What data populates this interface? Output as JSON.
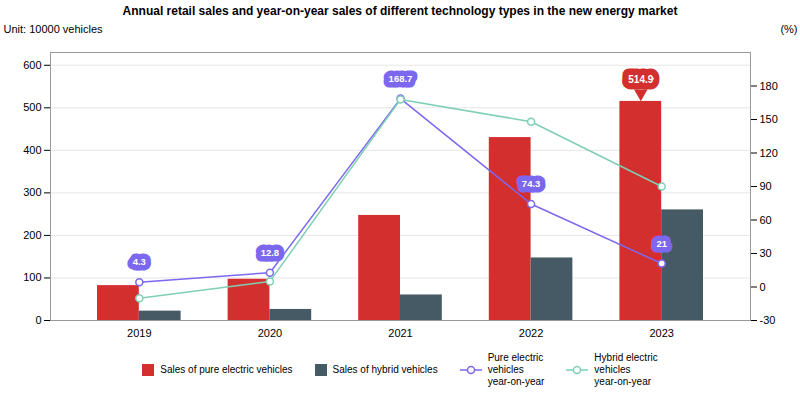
{
  "chart_data": {
    "type": "bar",
    "title": "Annual retail sales and year-on-year sales of different technology types in the new energy market",
    "ylabel": "Unit: 10000 vehicles",
    "y2label": "(%)",
    "categories": [
      "2019",
      "2020",
      "2021",
      "2022",
      "2023"
    ],
    "series": [
      {
        "name": "Sales of pure electric vehicles",
        "color": "#d32f2f",
        "values": [
          82,
          97,
          247,
          430,
          515
        ]
      },
      {
        "name": "Sales of hybrid vehicles",
        "color": "#455a64",
        "values": [
          22,
          26,
          60,
          147,
          260
        ]
      },
      {
        "name": "Pure electric\nvehicles\nyear-on-year",
        "type": "line",
        "axis": "y2",
        "color": "#7b68ee",
        "marker": "circle",
        "values": [
          4.3,
          12.8,
          168.7,
          74.3,
          21
        ],
        "data_labels": true,
        "value_labels": [
          "4.3",
          "12.8",
          "168.7",
          "74.3",
          "21"
        ]
      },
      {
        "name": "Hybrid electric\nvehicles\nyear-on-year",
        "type": "line",
        "axis": "y2",
        "color": "#7ecfb3",
        "marker": "circle",
        "values": [
          -10,
          5,
          168,
          148,
          90
        ]
      }
    ],
    "annotations": [
      {
        "text": "514.9",
        "x": "2023",
        "series": "Sales of pure electric vehicles"
      }
    ],
    "ylim": [
      0,
      630
    ],
    "yticks": [
      0,
      100,
      200,
      300,
      400,
      500,
      600
    ],
    "y2lim": [
      -30,
      210
    ],
    "y2ticks": [
      -30,
      0,
      30,
      60,
      90,
      120,
      150,
      180
    ],
    "grid": true,
    "legend": "bottom"
  }
}
